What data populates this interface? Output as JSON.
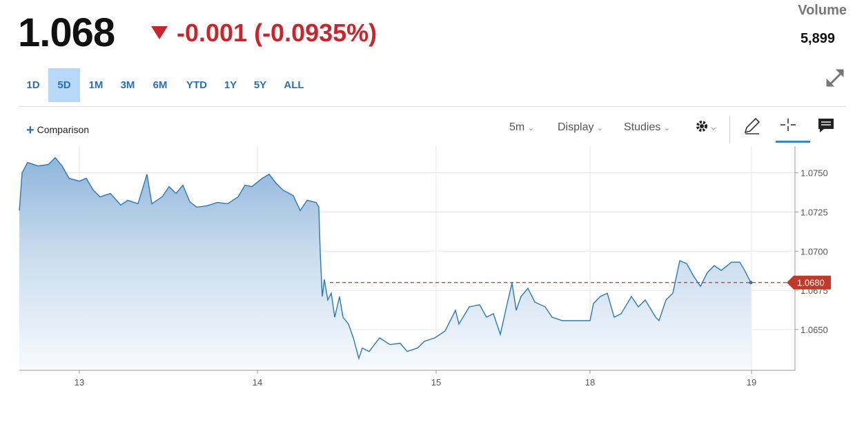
{
  "header": {
    "price": "1.068",
    "change": "-0.001 (-0.0935%)"
  },
  "volume": {
    "label": "Volume",
    "value": "5,899"
  },
  "ranges": [
    "1D",
    "5D",
    "1M",
    "3M",
    "6M",
    "YTD",
    "1Y",
    "5Y",
    "ALL"
  ],
  "selected_range_index": 1,
  "toolbar": {
    "comparison": "Comparison",
    "interval": "5m",
    "display": "Display",
    "studies": "Studies"
  },
  "chart_data": {
    "type": "area",
    "x": [
      0,
      4,
      12,
      27,
      42,
      52,
      62,
      72,
      87,
      97,
      107,
      117,
      132,
      147,
      157,
      172,
      185,
      192,
      207,
      217,
      227,
      237,
      247,
      257,
      272,
      287,
      302,
      317,
      327,
      337,
      352,
      362,
      372,
      382,
      397,
      407,
      417,
      430,
      434,
      436,
      439,
      442,
      447,
      452,
      457,
      464,
      469,
      477,
      484,
      492,
      497,
      507,
      522,
      537,
      552,
      562,
      577,
      587,
      602,
      617,
      632,
      637,
      652,
      667,
      677,
      687,
      697,
      707,
      714,
      720,
      727,
      737,
      747,
      762,
      772,
      787,
      827,
      832,
      842,
      852,
      862,
      872,
      887,
      897,
      907,
      922,
      927,
      937,
      947,
      957,
      967,
      977,
      987,
      997,
      1007,
      1017,
      1032,
      1044,
      1050,
      1060
    ],
    "values": [
      1.07259,
      1.075,
      1.07566,
      1.07544,
      1.07553,
      1.07597,
      1.07544,
      1.07465,
      1.07447,
      1.07465,
      1.0739,
      1.07347,
      1.07368,
      1.07294,
      1.07325,
      1.07303,
      1.07491,
      1.07303,
      1.07347,
      1.07412,
      1.07368,
      1.07421,
      1.07316,
      1.07281,
      1.0729,
      1.07311,
      1.07303,
      1.07347,
      1.07421,
      1.07412,
      1.07465,
      1.07491,
      1.07434,
      1.0739,
      1.07355,
      1.07259,
      1.07325,
      1.07311,
      1.07281,
      1.06996,
      1.06711,
      1.0682,
      1.06689,
      1.06732,
      1.06579,
      1.06711,
      1.06579,
      1.06535,
      1.06447,
      1.06316,
      1.06382,
      1.0636,
      1.06447,
      1.06404,
      1.06412,
      1.0636,
      1.06382,
      1.06425,
      1.06447,
      1.06491,
      1.06623,
      1.06535,
      1.06645,
      1.06658,
      1.06579,
      1.06601,
      1.06469,
      1.06667,
      1.06798,
      1.06623,
      1.06711,
      1.06763,
      1.06675,
      1.06645,
      1.06579,
      1.06557,
      1.06557,
      1.06667,
      1.06711,
      1.06732,
      1.06579,
      1.06601,
      1.06711,
      1.06645,
      1.06689,
      1.06579,
      1.06557,
      1.06689,
      1.06732,
      1.06939,
      1.06921,
      1.06842,
      1.06776,
      1.06864,
      1.06908,
      1.06877,
      1.0693,
      1.0693,
      1.06886,
      1.068
    ],
    "color": "#2a78b4",
    "xlim": [
      0,
      1124
    ],
    "xticks": [
      {
        "value": 87,
        "label": "13"
      },
      {
        "value": 345,
        "label": "14"
      },
      {
        "value": 604,
        "label": "15"
      },
      {
        "value": 827,
        "label": "18"
      },
      {
        "value": 1061,
        "label": "19"
      }
    ],
    "ylim": [
      1.0624,
      1.0767
    ],
    "yticks": [
      {
        "value": 1.065,
        "label": "1.0650"
      },
      {
        "value": 1.0675,
        "label": "1.0675"
      },
      {
        "value": 1.07,
        "label": "1.0700"
      },
      {
        "value": 1.0725,
        "label": "1.0725"
      },
      {
        "value": 1.075,
        "label": "1.0750"
      }
    ],
    "grid": true,
    "reference_line": {
      "value": 1.068,
      "label": "1.0680",
      "color": "#c0392b"
    }
  }
}
